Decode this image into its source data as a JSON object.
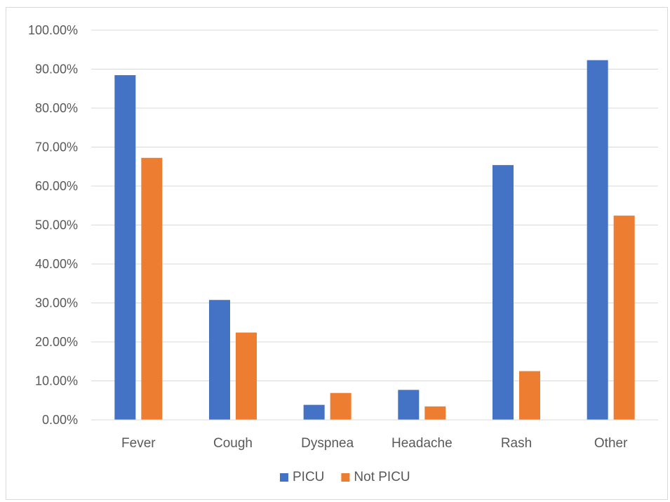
{
  "chart_data": {
    "type": "bar",
    "categories": [
      "Fever",
      "Cough",
      "Dyspnea",
      "Headache",
      "Rash",
      "Other"
    ],
    "series": [
      {
        "name": "PICU",
        "values": [
          88.46,
          30.77,
          3.85,
          7.69,
          65.38,
          92.31
        ],
        "color": "#4472c4"
      },
      {
        "name": "Not PICU",
        "values": [
          67.24,
          22.41,
          6.9,
          3.45,
          12.5,
          52.41
        ],
        "color": "#ed7d31"
      }
    ],
    "ylim": [
      0,
      100
    ],
    "yticks": [
      "0.00%",
      "10.00%",
      "20.00%",
      "30.00%",
      "40.00%",
      "50.00%",
      "60.00%",
      "70.00%",
      "80.00%",
      "90.00%",
      "100.00%"
    ],
    "grid": true,
    "legend": "bottom",
    "gridline_color": "#d9d9d9",
    "title": "",
    "xlabel": "",
    "ylabel": ""
  }
}
